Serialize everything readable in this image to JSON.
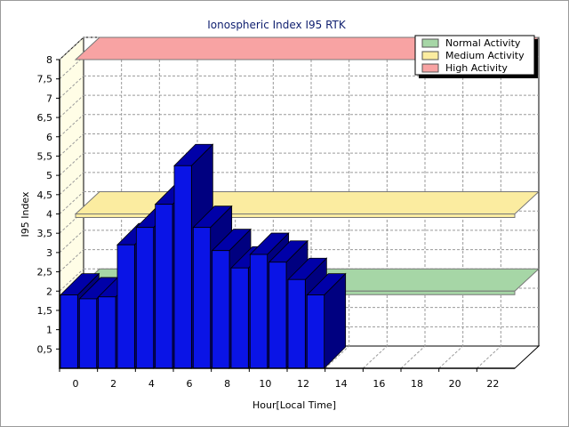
{
  "chart_data": {
    "type": "bar",
    "title": "Ionospheric Index I95 RTK",
    "xlabel": "Hour[Local Time]",
    "ylabel": "I95 Index",
    "x_tick_labels": [
      "0",
      "2",
      "4",
      "6",
      "8",
      "10",
      "12",
      "14",
      "16",
      "18",
      "20",
      "22"
    ],
    "y_tick_labels": [
      "0,5",
      "1",
      "1,5",
      "2",
      "2,5",
      "3",
      "3,5",
      "4",
      "4,5",
      "5",
      "5,5",
      "6",
      "6,5",
      "7",
      "7,5",
      "8"
    ],
    "xlim": [
      0,
      24
    ],
    "ylim": [
      0,
      8
    ],
    "grid": true,
    "legend_position": "top-right",
    "legend": [
      {
        "label": "Normal Activity",
        "color": "#a6d6a6"
      },
      {
        "label": "Medium Activity",
        "color": "#fbeca0"
      },
      {
        "label": "High Activity",
        "color": "#f8a3a3"
      }
    ],
    "bands": [
      {
        "name": "Normal Activity",
        "value": 2,
        "color": "#a6d6a6"
      },
      {
        "name": "Medium Activity",
        "value": 4,
        "color": "#fbeca0"
      },
      {
        "name": "High Activity",
        "value": 8,
        "color": "#f8a3a3"
      }
    ],
    "series": [
      {
        "x": [
          0,
          1,
          2,
          3,
          4,
          5,
          6,
          7,
          8,
          9,
          10,
          11,
          12,
          13
        ],
        "values": [
          1.9,
          1.8,
          1.85,
          3.2,
          3.65,
          4.25,
          5.25,
          3.65,
          3.05,
          2.6,
          2.95,
          2.75,
          2.3,
          1.9
        ],
        "color": "#0a14e6"
      }
    ]
  }
}
